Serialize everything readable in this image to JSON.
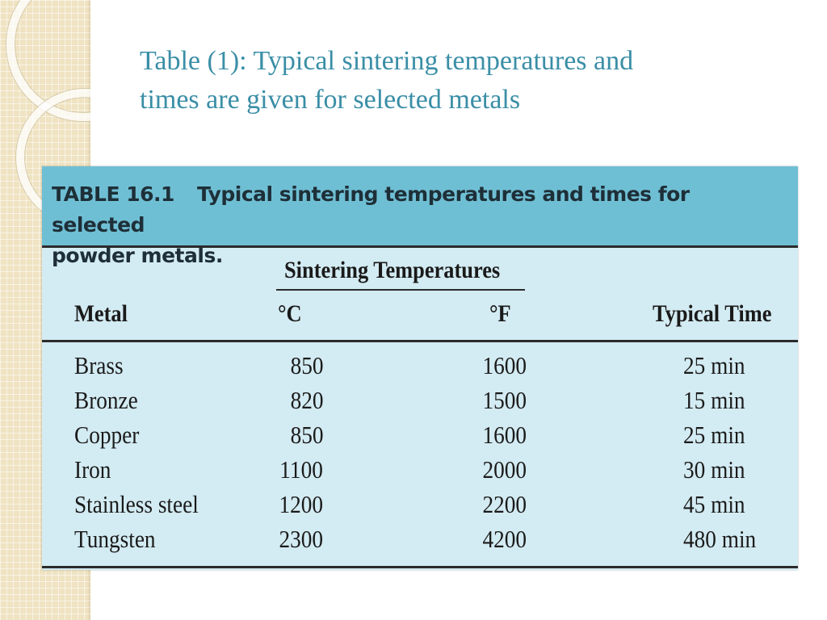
{
  "slide": {
    "title_line1": "Table (1): Typical sintering temperatures and",
    "title_line2": "times are given for selected metals"
  },
  "table": {
    "caption_label": "TABLE 16.1",
    "caption_line1": "Typical sintering temperatures and times for selected",
    "caption_line2": "powder metals.",
    "span_header": "Sintering Temperatures",
    "headers": {
      "metal": "Metal",
      "celsius": "°C",
      "fahrenheit": "°F",
      "time": "Typical Time"
    },
    "rows": [
      {
        "metal": "Brass",
        "celsius": "850",
        "fahrenheit": "1600",
        "time": "25 min"
      },
      {
        "metal": "Bronze",
        "celsius": "820",
        "fahrenheit": "1500",
        "time": "15 min"
      },
      {
        "metal": "Copper",
        "celsius": "850",
        "fahrenheit": "1600",
        "time": "25 min"
      },
      {
        "metal": "Iron",
        "celsius": "1100",
        "fahrenheit": "2000",
        "time": "30 min"
      },
      {
        "metal": "Stainless steel",
        "celsius": "1200",
        "fahrenheit": "2200",
        "time": "45 min"
      },
      {
        "metal": "Tungsten",
        "celsius": "2300",
        "fahrenheit": "4200",
        "time": "480 min"
      }
    ]
  },
  "colors": {
    "title": "#3a8ea6",
    "caption_band": "#6fbfd4",
    "table_body": "#d3ebf2",
    "left_strip": "#efe3c2"
  }
}
